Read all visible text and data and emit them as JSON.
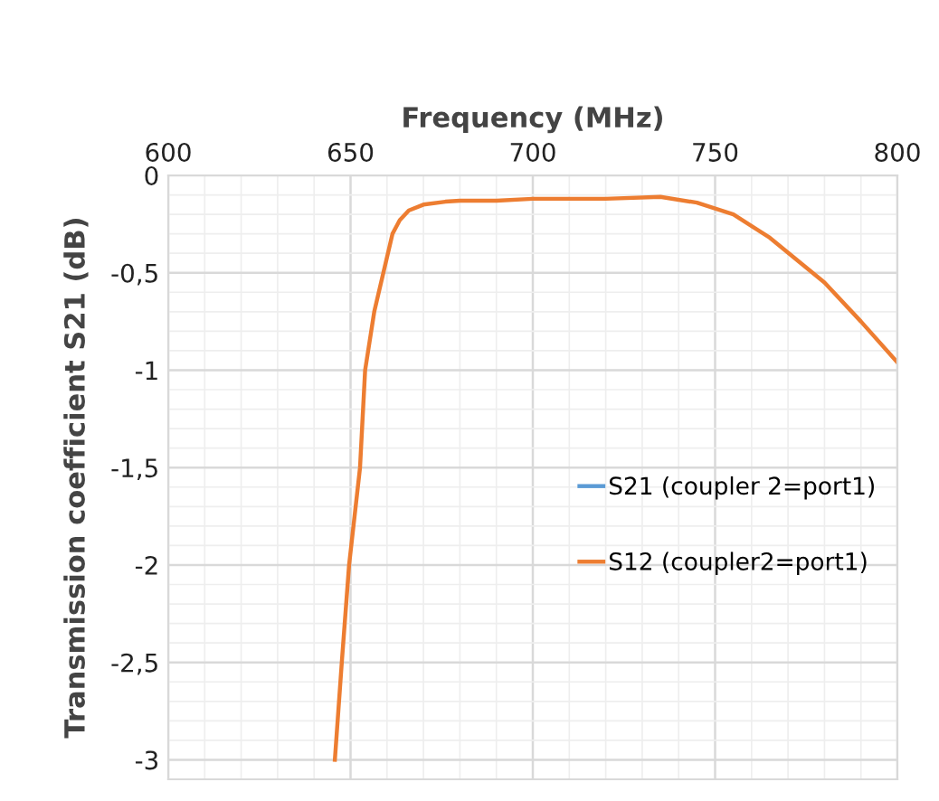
{
  "chart_data": {
    "type": "line",
    "xlabel": "Frequency (MHz)",
    "ylabel": "Transmission coefficient S21 (dB)",
    "x": [
      645.7,
      647.6,
      649.6,
      652.6,
      654,
      656.5,
      659,
      661.5,
      663.5,
      666,
      670,
      676,
      680,
      690,
      700,
      710,
      720,
      735,
      745,
      755,
      765,
      780,
      790,
      800
    ],
    "series": [
      {
        "name": "S21 (coupler 2=port1)",
        "color": "#5b9bd5",
        "values": [
          null,
          null,
          null,
          null,
          null,
          null,
          null,
          null,
          null,
          null,
          null,
          null,
          null,
          null,
          null,
          null,
          null,
          null,
          null,
          null,
          null,
          null,
          null,
          null
        ]
      },
      {
        "name": "S12 (coupler2=port1)",
        "color": "#ed7d31",
        "values": [
          -3,
          -2.5,
          -2,
          -1.5,
          -1,
          -0.7,
          -0.5,
          -0.3,
          -0.23,
          -0.18,
          -0.15,
          -0.135,
          -0.13,
          -0.13,
          -0.12,
          -0.12,
          -0.12,
          -0.11,
          -0.14,
          -0.2,
          -0.32,
          -0.55,
          -0.75,
          -0.96
        ]
      }
    ],
    "xlim": [
      600,
      800
    ],
    "xticks": [
      600,
      650,
      700,
      750,
      800
    ],
    "ylim": [
      -3.1,
      0
    ],
    "yticks": [
      {
        "value": 0,
        "label": "0"
      },
      {
        "value": -0.5,
        "label": "-0,5"
      },
      {
        "value": -1,
        "label": "-1"
      },
      {
        "value": -1.5,
        "label": "-1,5"
      },
      {
        "value": -2,
        "label": "-2"
      },
      {
        "value": -2.5,
        "label": "-2,5"
      },
      {
        "value": -3,
        "label": "-3"
      }
    ],
    "grid": true,
    "legend": "right",
    "marker": "none",
    "line_style": "solid"
  }
}
